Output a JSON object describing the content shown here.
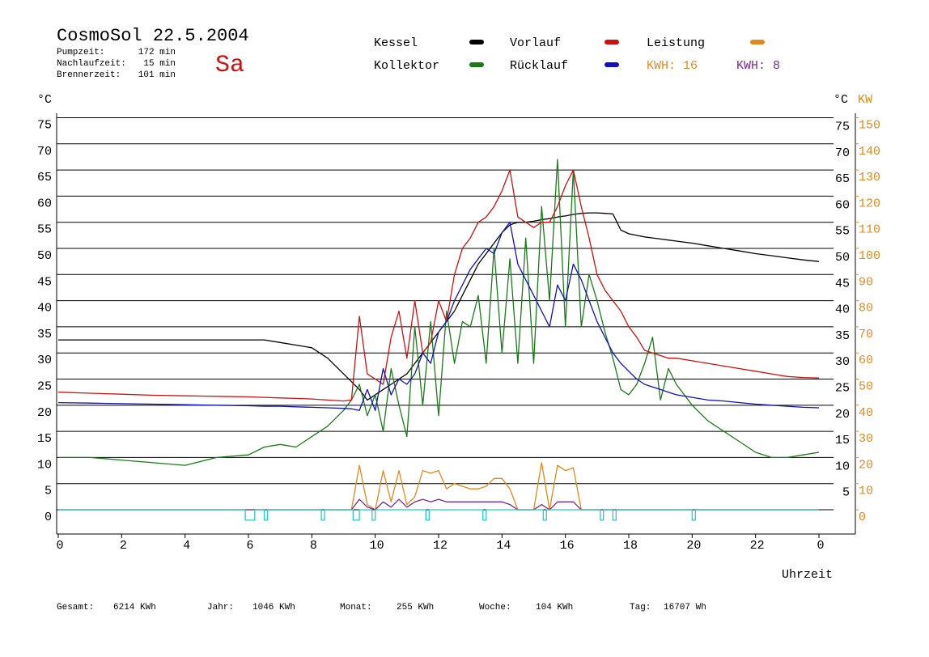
{
  "chart_data": {
    "type": "line",
    "title": "CosmoSol 22.5.2004",
    "day": "Sa",
    "info": [
      {
        "label": "Pumpzeit:",
        "value": "172 min"
      },
      {
        "label": "Nachlaufzeit:",
        "value": "15 min"
      },
      {
        "label": "Brennerzeit:",
        "value": "101 min"
      }
    ],
    "kwh_labels": [
      {
        "text": "KWH: 16",
        "color": "#e08a1e"
      },
      {
        "text": "KWH: 8",
        "color": "#7a2a8a"
      }
    ],
    "y_unit": "°C",
    "y2_units": [
      "°C",
      "KW"
    ],
    "x_label": "Uhrzeit",
    "footer": [
      {
        "label": "Gesamt:",
        "value": "6214 KWh"
      },
      {
        "label": "Jahr:",
        "value": "1046 KWh"
      },
      {
        "label": "Monat:",
        "value": "255 KWh"
      },
      {
        "label": "Woche:",
        "value": "104 KWh"
      },
      {
        "label": "Tag:",
        "value": "16707 Wh"
      }
    ],
    "xlim": [
      0,
      24
    ],
    "xticks": [
      0,
      2,
      4,
      6,
      8,
      10,
      12,
      14,
      16,
      18,
      20,
      22,
      {
        "value": 24,
        "label": "0"
      }
    ],
    "ylim": [
      -4.64,
      75.85
    ],
    "yticks": [
      0,
      5,
      10,
      15,
      20,
      25,
      30,
      35,
      40,
      45,
      50,
      55,
      60,
      65,
      70,
      75
    ],
    "yticks_right": [
      5,
      10,
      15,
      20,
      25,
      30,
      35,
      40,
      45,
      50,
      55,
      60,
      65,
      70,
      75
    ],
    "y2lim": [
      -9.28,
      151.7
    ],
    "y2ticks": [
      0,
      10,
      20,
      30,
      40,
      50,
      60,
      70,
      80,
      90,
      100,
      110,
      120,
      130,
      140,
      150
    ],
    "y2_color": "#e08a1e",
    "grid": true,
    "x": [
      0,
      1,
      2,
      3,
      4,
      5,
      6,
      6.5,
      7,
      7.5,
      8,
      8.5,
      9,
      9.25,
      9.5,
      9.75,
      10,
      10.25,
      10.5,
      10.75,
      11,
      11.25,
      11.5,
      11.75,
      12,
      12.25,
      12.5,
      12.75,
      13,
      13.25,
      13.5,
      13.75,
      14,
      14.25,
      14.5,
      14.75,
      15,
      15.25,
      15.5,
      15.75,
      16,
      16.25,
      16.5,
      16.75,
      17,
      17.25,
      17.5,
      17.75,
      18,
      18.25,
      18.5,
      18.75,
      19,
      19.25,
      19.5,
      20,
      20.5,
      21,
      21.5,
      22,
      22.5,
      23,
      23.5,
      24
    ],
    "series": [
      {
        "name": "Kessel",
        "color": "#000000",
        "values": [
          32.5,
          32.5,
          32.5,
          32.5,
          32.5,
          32.5,
          32.5,
          32.5,
          32,
          31.5,
          31,
          29,
          26,
          24.5,
          23,
          21,
          22,
          23,
          24,
          25,
          26,
          28,
          30,
          32,
          34,
          36,
          38,
          41,
          44,
          47,
          49,
          51,
          53,
          54.5,
          55,
          55,
          55.2,
          55.5,
          55.7,
          56,
          56.2,
          56.5,
          56.7,
          56.8,
          56.8,
          56.7,
          56.6,
          53.5,
          52.8,
          52.5,
          52.2,
          52,
          51.8,
          51.6,
          51.4,
          51,
          50.5,
          50,
          49.5,
          49,
          48.6,
          48.2,
          47.8,
          47.5
        ]
      },
      {
        "name": "Kollektor",
        "color": "#1a7a1a",
        "values": [
          10,
          10,
          9.5,
          9,
          8.5,
          10,
          10.5,
          12,
          12.5,
          12,
          14,
          16,
          19,
          21,
          24,
          18,
          22,
          15,
          27,
          20,
          14,
          35,
          20,
          36,
          18,
          38,
          28,
          36,
          35,
          41,
          28,
          50,
          30,
          48,
          28,
          52,
          28,
          58,
          40,
          67,
          35,
          65,
          35,
          45,
          40,
          34,
          29,
          23,
          22,
          24,
          28,
          33,
          21,
          27,
          24,
          20,
          17,
          15,
          13,
          11,
          10,
          10,
          10.5,
          11
        ]
      },
      {
        "name": "Vorlauf",
        "color": "#cc1111",
        "values": [
          22.5,
          22.3,
          22.1,
          21.9,
          21.8,
          21.7,
          21.6,
          21.5,
          21.4,
          21.3,
          21.2,
          21,
          20.8,
          21,
          37,
          26,
          25,
          24,
          33,
          38,
          29,
          40,
          30,
          32,
          40,
          36,
          45,
          50,
          52,
          55,
          56,
          58,
          61,
          65,
          56,
          55,
          54,
          55,
          55,
          58,
          62,
          65,
          58,
          52,
          45,
          42,
          40,
          38,
          35,
          33,
          30.5,
          30,
          29.5,
          29,
          29,
          28.5,
          28,
          27.5,
          27,
          26.5,
          26,
          25.5,
          25.3,
          25.2
        ]
      },
      {
        "name": "Rücklauf",
        "color": "#1111bb",
        "values": [
          20.5,
          20.4,
          20.3,
          20.2,
          20.1,
          20,
          19.9,
          19.8,
          19.8,
          19.7,
          19.6,
          19.5,
          19.4,
          19.3,
          19,
          23,
          19,
          27,
          22,
          25,
          24,
          26,
          30,
          28,
          34,
          36,
          40,
          43,
          46,
          48,
          50,
          49,
          53,
          55,
          47,
          44,
          41,
          38,
          35,
          43,
          40,
          47,
          44,
          40,
          36,
          33,
          30,
          28,
          26.5,
          25,
          24,
          23.5,
          23,
          22.5,
          22,
          21.5,
          21,
          20.8,
          20.5,
          20.2,
          20,
          19.8,
          19.6,
          19.5
        ]
      },
      {
        "name": "Leistung",
        "color": "#e08a1e",
        "axis": "y2",
        "values": [
          0,
          0,
          0,
          0,
          0,
          0,
          0,
          0,
          0,
          0,
          0,
          0,
          0,
          0,
          17,
          2,
          0,
          15,
          3,
          15,
          2,
          5,
          15,
          14,
          15,
          8,
          10,
          9,
          8,
          8,
          9,
          12,
          12,
          8,
          0,
          0,
          0,
          18,
          0,
          17,
          15,
          16,
          0,
          0,
          0,
          0,
          0,
          0,
          0,
          0,
          0,
          0,
          0,
          0,
          0,
          0,
          0,
          0,
          0,
          0,
          0,
          0,
          0,
          0
        ]
      },
      {
        "color": "#7a2a8a",
        "axis": "y2",
        "values": [
          0,
          0,
          0,
          0,
          0,
          0,
          0,
          0,
          0,
          0,
          0,
          0,
          0,
          0,
          4,
          1,
          0,
          3,
          1,
          4,
          1,
          3,
          4,
          3,
          4,
          3,
          3,
          3,
          3,
          3,
          3,
          3,
          3,
          2,
          0,
          0,
          0,
          2,
          0,
          3,
          3,
          3,
          0,
          0,
          0,
          0,
          0,
          0,
          0,
          0,
          0,
          0,
          0,
          0,
          0,
          0,
          0,
          0,
          0,
          0,
          0,
          0,
          0,
          0
        ]
      },
      {
        "color": "#22cccc",
        "x": [
          0,
          5.9,
          5.9,
          6.2,
          6.2,
          6.5,
          6.5,
          6.6,
          6.6,
          8.3,
          8.3,
          8.4,
          8.4,
          9.3,
          9.3,
          9.5,
          9.5,
          9.9,
          9.9,
          10,
          10,
          11.6,
          11.6,
          11.7,
          11.7,
          13.4,
          13.4,
          13.5,
          13.5,
          15.3,
          15.3,
          15.4,
          15.4,
          17.1,
          17.1,
          17.2,
          17.2,
          17.5,
          17.5,
          17.6,
          17.6,
          20,
          20,
          20.1,
          20.1,
          24
        ],
        "values": [
          0,
          0,
          -2,
          -2,
          0,
          0,
          -2,
          -2,
          0,
          0,
          -2,
          -2,
          0,
          0,
          -2,
          -2,
          0,
          0,
          -2,
          -2,
          0,
          0,
          -2,
          -2,
          0,
          0,
          -2,
          -2,
          0,
          0,
          -2,
          -2,
          0,
          0,
          -2,
          -2,
          0,
          0,
          -2,
          -2,
          0,
          0,
          -2,
          -2,
          0,
          0
        ]
      }
    ]
  }
}
